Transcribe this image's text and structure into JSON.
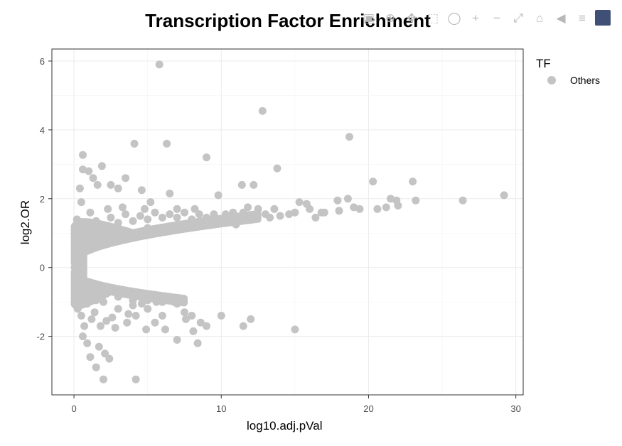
{
  "title": "Transcription Factor Enrichment",
  "toolbar": {
    "buttons": [
      {
        "name": "camera-icon",
        "glyph": "▣"
      },
      {
        "name": "zoom-icon",
        "glyph": "⊕"
      },
      {
        "name": "pan-icon",
        "glyph": "✥"
      },
      {
        "name": "box-select-icon",
        "glyph": "⬚"
      },
      {
        "name": "lasso-select-icon",
        "glyph": "◯"
      },
      {
        "name": "zoom-in-icon",
        "glyph": "+"
      },
      {
        "name": "zoom-out-icon",
        "glyph": "−"
      },
      {
        "name": "autoscale-icon",
        "glyph": "⤢"
      },
      {
        "name": "reset-axes-icon",
        "glyph": "⌂"
      },
      {
        "name": "hover-closest-icon",
        "glyph": "◀"
      },
      {
        "name": "hover-compare-icon",
        "glyph": "≡"
      }
    ]
  },
  "legend": {
    "title": "TF",
    "items": [
      {
        "label": "Others",
        "color": "#c4c4c4"
      }
    ]
  },
  "chart_data": {
    "type": "scatter",
    "xlabel": "log10.adj.pVal",
    "ylabel": "log2.OR",
    "xlim": [
      -1.5,
      30.5
    ],
    "ylim": [
      -3.7,
      6.35
    ],
    "x_ticks": [
      0,
      10,
      20,
      30
    ],
    "y_ticks": [
      -2,
      0,
      2,
      4,
      6
    ],
    "grid": true,
    "legend_position": "right",
    "series": [
      {
        "name": "Others",
        "color": "#c4c4c4",
        "points": [
          [
            5.8,
            5.9
          ],
          [
            12.8,
            4.55
          ],
          [
            18.7,
            3.8
          ],
          [
            4.1,
            3.6
          ],
          [
            6.3,
            3.6
          ],
          [
            9.0,
            3.2
          ],
          [
            0.6,
            3.27
          ],
          [
            13.8,
            2.88
          ],
          [
            1.9,
            2.95
          ],
          [
            0.6,
            2.85
          ],
          [
            1.0,
            2.8
          ],
          [
            1.3,
            2.6
          ],
          [
            1.6,
            2.4
          ],
          [
            3.5,
            2.6
          ],
          [
            2.5,
            2.4
          ],
          [
            3.0,
            2.3
          ],
          [
            4.6,
            2.25
          ],
          [
            6.5,
            2.15
          ],
          [
            9.8,
            2.1
          ],
          [
            11.4,
            2.4
          ],
          [
            12.2,
            2.4
          ],
          [
            20.3,
            2.5
          ],
          [
            23.0,
            2.5
          ],
          [
            26.4,
            1.95
          ],
          [
            29.2,
            2.1
          ],
          [
            21.5,
            2.0
          ],
          [
            21.9,
            1.95
          ],
          [
            23.2,
            1.95
          ],
          [
            18.6,
            2.0
          ],
          [
            17.9,
            1.95
          ],
          [
            15.3,
            1.9
          ],
          [
            16.8,
            1.6
          ],
          [
            19.4,
            1.7
          ],
          [
            20.6,
            1.7
          ],
          [
            21.2,
            1.75
          ],
          [
            22.0,
            1.8
          ],
          [
            14.6,
            1.55
          ],
          [
            13.3,
            1.45
          ],
          [
            11.5,
            1.6
          ],
          [
            10.3,
            1.55
          ],
          [
            8.2,
            1.7
          ],
          [
            7.0,
            1.7
          ],
          [
            5.2,
            1.9
          ],
          [
            4.8,
            1.7
          ],
          [
            3.3,
            1.75
          ],
          [
            2.3,
            1.7
          ],
          [
            0.4,
            2.3
          ],
          [
            0.5,
            1.9
          ],
          [
            1.1,
            1.6
          ],
          [
            0.2,
            1.4
          ],
          [
            0.1,
            1.1
          ],
          [
            0.05,
            0.8
          ],
          [
            0.08,
            0.55
          ],
          [
            0.15,
            0.3
          ],
          [
            0.05,
            0.0
          ],
          [
            0.1,
            -0.3
          ],
          [
            0.15,
            -0.6
          ],
          [
            0.3,
            -0.9
          ],
          [
            0.25,
            -1.2
          ],
          [
            0.5,
            -1.4
          ],
          [
            0.7,
            -1.7
          ],
          [
            0.6,
            -2.0
          ],
          [
            0.9,
            -2.2
          ],
          [
            1.1,
            -2.6
          ],
          [
            1.5,
            -2.9
          ],
          [
            1.7,
            -2.3
          ],
          [
            2.1,
            -2.5
          ],
          [
            2.4,
            -2.65
          ],
          [
            2.0,
            -3.25
          ],
          [
            4.2,
            -3.25
          ],
          [
            1.2,
            -1.5
          ],
          [
            1.8,
            -1.7
          ],
          [
            2.2,
            -1.55
          ],
          [
            2.8,
            -1.75
          ],
          [
            3.6,
            -1.6
          ],
          [
            4.2,
            -1.4
          ],
          [
            4.9,
            -1.8
          ],
          [
            5.5,
            -1.6
          ],
          [
            6.2,
            -1.8
          ],
          [
            7.0,
            -2.1
          ],
          [
            7.6,
            -1.5
          ],
          [
            8.1,
            -1.85
          ],
          [
            8.4,
            -2.2
          ],
          [
            8.6,
            -1.6
          ],
          [
            9.0,
            -1.7
          ],
          [
            10.0,
            -1.4
          ],
          [
            11.5,
            -1.7
          ],
          [
            12.0,
            -1.5
          ],
          [
            15.0,
            -1.8
          ],
          [
            4.0,
            -1.1
          ],
          [
            3.0,
            -1.2
          ],
          [
            2.0,
            -1.0
          ],
          [
            5.0,
            -1.2
          ],
          [
            6.0,
            -1.4
          ],
          [
            6.8,
            -1.0
          ],
          [
            7.5,
            -1.3
          ],
          [
            8.0,
            -1.4
          ],
          [
            1.4,
            -1.3
          ],
          [
            0.9,
            -1.05
          ],
          [
            2.6,
            -1.45
          ],
          [
            3.7,
            -1.35
          ],
          [
            4.6,
            -1.05
          ],
          [
            5.6,
            -1.0
          ],
          [
            0.4,
            -0.7
          ],
          [
            0.8,
            -0.8
          ],
          [
            1.5,
            -0.95
          ],
          [
            0.35,
            0.7
          ],
          [
            0.7,
            0.9
          ],
          [
            1.2,
            1.1
          ],
          [
            2.0,
            1.2
          ],
          [
            3.0,
            1.3
          ],
          [
            4.0,
            1.35
          ],
          [
            5.0,
            1.4
          ],
          [
            6.0,
            1.45
          ],
          [
            7.0,
            1.45
          ],
          [
            8.0,
            1.4
          ],
          [
            9.0,
            1.45
          ],
          [
            10.0,
            1.4
          ],
          [
            11.0,
            1.45
          ],
          [
            12.0,
            1.5
          ],
          [
            13.0,
            1.55
          ],
          [
            14.0,
            1.5
          ],
          [
            15.0,
            1.6
          ],
          [
            16.0,
            1.7
          ],
          [
            17.0,
            1.6
          ],
          [
            18.0,
            1.65
          ],
          [
            19.0,
            1.75
          ],
          [
            12.5,
            1.7
          ],
          [
            11.8,
            1.75
          ],
          [
            10.8,
            1.6
          ],
          [
            9.5,
            1.55
          ],
          [
            8.5,
            1.55
          ],
          [
            7.5,
            1.6
          ],
          [
            6.5,
            1.55
          ],
          [
            5.5,
            1.6
          ],
          [
            4.5,
            1.5
          ],
          [
            3.5,
            1.55
          ],
          [
            2.5,
            1.45
          ],
          [
            1.5,
            1.35
          ],
          [
            0.9,
            1.3
          ],
          [
            13.6,
            1.7
          ],
          [
            15.8,
            1.85
          ],
          [
            16.4,
            1.45
          ],
          [
            11.0,
            1.25
          ],
          [
            9.0,
            1.25
          ],
          [
            7.0,
            1.2
          ],
          [
            5.0,
            1.15
          ],
          [
            3.2,
            1.05
          ],
          [
            1.8,
            0.95
          ],
          [
            0.3,
            -0.4
          ],
          [
            0.6,
            -0.55
          ],
          [
            1.0,
            -0.65
          ],
          [
            2.0,
            -0.75
          ],
          [
            3.0,
            -0.85
          ],
          [
            4.0,
            -0.95
          ],
          [
            5.0,
            -0.95
          ],
          [
            6.0,
            -1.0
          ],
          [
            7.0,
            -1.05
          ],
          [
            0.2,
            0.45
          ],
          [
            0.5,
            0.55
          ],
          [
            1.5,
            0.8
          ],
          [
            2.5,
            0.9
          ]
        ]
      }
    ]
  }
}
